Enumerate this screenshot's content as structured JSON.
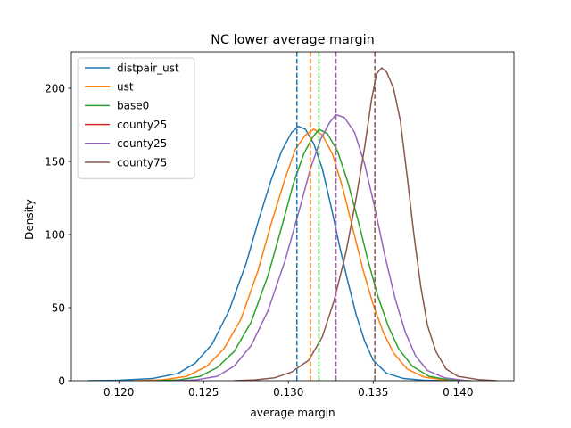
{
  "chart_data": {
    "type": "line",
    "title": "NC lower average margin",
    "xlabel": "average margin",
    "ylabel": "Density",
    "xlim": [
      0.1172,
      0.1433
    ],
    "ylim": [
      0,
      225
    ],
    "xticks": [
      0.12,
      0.125,
      0.13,
      0.135,
      0.14
    ],
    "xtick_labels": [
      "0.120",
      "0.125",
      "0.130",
      "0.135",
      "0.140"
    ],
    "yticks": [
      0,
      50,
      100,
      150,
      200
    ],
    "ytick_labels": [
      "0",
      "50",
      "100",
      "150",
      "200"
    ],
    "grid": false,
    "legend_position": "upper-left",
    "series": [
      {
        "name": "distpair_ust",
        "color": "#1f77b4",
        "mean": 0.1305,
        "points": [
          [
            0.1182,
            0
          ],
          [
            0.12,
            0.3
          ],
          [
            0.122,
            1.5
          ],
          [
            0.1235,
            5
          ],
          [
            0.1245,
            12
          ],
          [
            0.1255,
            25
          ],
          [
            0.1265,
            48
          ],
          [
            0.1275,
            80
          ],
          [
            0.1283,
            112
          ],
          [
            0.129,
            138
          ],
          [
            0.1296,
            157
          ],
          [
            0.1302,
            170
          ],
          [
            0.1306,
            174
          ],
          [
            0.131,
            172
          ],
          [
            0.1315,
            162
          ],
          [
            0.132,
            145
          ],
          [
            0.1325,
            120
          ],
          [
            0.133,
            93
          ],
          [
            0.1335,
            68
          ],
          [
            0.134,
            45
          ],
          [
            0.1345,
            27
          ],
          [
            0.135,
            14
          ],
          [
            0.1358,
            5
          ],
          [
            0.1368,
            1.5
          ],
          [
            0.138,
            0.3
          ],
          [
            0.1393,
            0
          ]
        ]
      },
      {
        "name": "ust",
        "color": "#ff7f0e",
        "mean": 0.1313,
        "points": [
          [
            0.121,
            0
          ],
          [
            0.1225,
            0.5
          ],
          [
            0.124,
            3
          ],
          [
            0.1252,
            10
          ],
          [
            0.1262,
            22
          ],
          [
            0.1272,
            42
          ],
          [
            0.1282,
            75
          ],
          [
            0.129,
            108
          ],
          [
            0.1298,
            138
          ],
          [
            0.1304,
            158
          ],
          [
            0.131,
            168
          ],
          [
            0.1315,
            172
          ],
          [
            0.132,
            168
          ],
          [
            0.1326,
            155
          ],
          [
            0.1332,
            132
          ],
          [
            0.1338,
            104
          ],
          [
            0.1344,
            76
          ],
          [
            0.135,
            52
          ],
          [
            0.1356,
            33
          ],
          [
            0.1362,
            19
          ],
          [
            0.137,
            8
          ],
          [
            0.138,
            2.5
          ],
          [
            0.1392,
            0.5
          ],
          [
            0.1405,
            0
          ]
        ]
      },
      {
        "name": "base0",
        "color": "#2ca02c",
        "mean": 0.1318,
        "points": [
          [
            0.1222,
            0
          ],
          [
            0.1235,
            0.5
          ],
          [
            0.1248,
            3
          ],
          [
            0.1258,
            9
          ],
          [
            0.1268,
            20
          ],
          [
            0.1278,
            40
          ],
          [
            0.1288,
            72
          ],
          [
            0.1296,
            105
          ],
          [
            0.1303,
            135
          ],
          [
            0.1309,
            155
          ],
          [
            0.1314,
            166
          ],
          [
            0.1318,
            172
          ],
          [
            0.1323,
            169
          ],
          [
            0.1329,
            157
          ],
          [
            0.1335,
            136
          ],
          [
            0.1341,
            110
          ],
          [
            0.1347,
            82
          ],
          [
            0.1353,
            57
          ],
          [
            0.1359,
            37
          ],
          [
            0.1365,
            22
          ],
          [
            0.1373,
            10
          ],
          [
            0.1383,
            3
          ],
          [
            0.1395,
            0.5
          ],
          [
            0.1408,
            0
          ]
        ]
      },
      {
        "name": "county25",
        "color": "#d62728",
        "mean": 0.1328,
        "points": []
      },
      {
        "name": "county25",
        "color": "#9467bd",
        "mean": 0.1328,
        "points": [
          [
            0.1232,
            0
          ],
          [
            0.1245,
            0.5
          ],
          [
            0.1258,
            3
          ],
          [
            0.1268,
            10
          ],
          [
            0.1278,
            24
          ],
          [
            0.1288,
            48
          ],
          [
            0.1298,
            82
          ],
          [
            0.1306,
            115
          ],
          [
            0.1313,
            145
          ],
          [
            0.1319,
            165
          ],
          [
            0.1324,
            176
          ],
          [
            0.1328,
            182
          ],
          [
            0.1333,
            180
          ],
          [
            0.1339,
            170
          ],
          [
            0.1345,
            148
          ],
          [
            0.1351,
            118
          ],
          [
            0.1357,
            85
          ],
          [
            0.1363,
            56
          ],
          [
            0.1369,
            33
          ],
          [
            0.1375,
            17
          ],
          [
            0.1382,
            7
          ],
          [
            0.1392,
            2
          ],
          [
            0.1405,
            0
          ]
        ]
      },
      {
        "name": "county75",
        "color": "#8c564b",
        "mean": 0.1351,
        "points": [
          [
            0.1268,
            0
          ],
          [
            0.128,
            0.5
          ],
          [
            0.1292,
            2
          ],
          [
            0.1302,
            6
          ],
          [
            0.1312,
            14
          ],
          [
            0.132,
            30
          ],
          [
            0.1327,
            55
          ],
          [
            0.1334,
            88
          ],
          [
            0.134,
            125
          ],
          [
            0.1345,
            160
          ],
          [
            0.1349,
            192
          ],
          [
            0.1352,
            210
          ],
          [
            0.1355,
            214
          ],
          [
            0.1358,
            211
          ],
          [
            0.1362,
            200
          ],
          [
            0.1366,
            178
          ],
          [
            0.137,
            140
          ],
          [
            0.1374,
            100
          ],
          [
            0.1378,
            65
          ],
          [
            0.1382,
            38
          ],
          [
            0.1387,
            20
          ],
          [
            0.1393,
            8
          ],
          [
            0.14,
            3
          ],
          [
            0.1412,
            0.8
          ],
          [
            0.1423,
            0
          ]
        ]
      }
    ]
  }
}
